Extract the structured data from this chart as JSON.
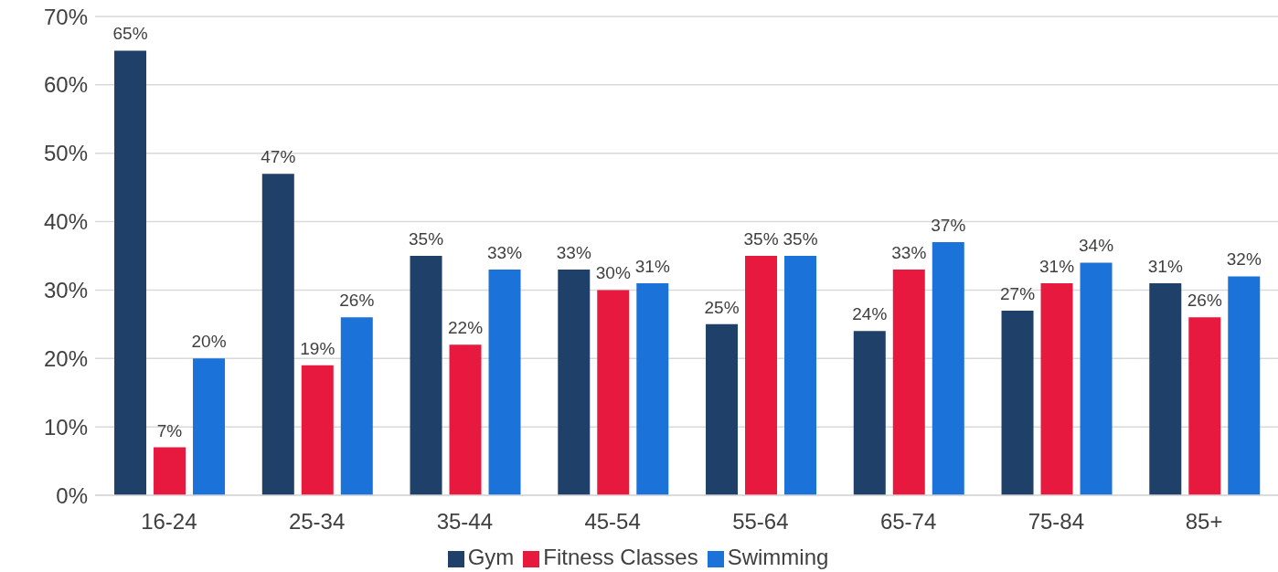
{
  "chart_data": {
    "type": "bar",
    "categories": [
      "16-24",
      "25-34",
      "35-44",
      "45-54",
      "55-64",
      "65-74",
      "75-84",
      "85+"
    ],
    "series": [
      {
        "name": "Gym",
        "color": "#1f4068",
        "values": [
          65,
          47,
          35,
          33,
          25,
          24,
          27,
          31
        ],
        "value_labels": [
          "65%",
          "47%",
          "35%",
          "33%",
          "25%",
          "24%",
          "27%",
          "31%"
        ]
      },
      {
        "name": "Fitness Classes",
        "color": "#e8193f",
        "values": [
          7,
          19,
          22,
          30,
          35,
          33,
          31,
          26
        ],
        "value_labels": [
          "7%",
          "19%",
          "22%",
          "30%",
          "35%",
          "33%",
          "31%",
          "26%"
        ]
      },
      {
        "name": "Swimming",
        "color": "#1b72d8",
        "values": [
          20,
          26,
          33,
          31,
          35,
          37,
          34,
          32
        ],
        "value_labels": [
          "20%",
          "26%",
          "33%",
          "31%",
          "35%",
          "37%",
          "34%",
          "32%"
        ]
      }
    ],
    "ylim": [
      0,
      70
    ],
    "yticks": [
      {
        "value": 0,
        "label": "0%"
      },
      {
        "value": 10,
        "label": "10%"
      },
      {
        "value": 20,
        "label": "20%"
      },
      {
        "value": 30,
        "label": "30%"
      },
      {
        "value": 40,
        "label": "40%"
      },
      {
        "value": 50,
        "label": "50%"
      },
      {
        "value": 60,
        "label": "60%"
      },
      {
        "value": 70,
        "label": "70%"
      }
    ],
    "grid": "y",
    "legend": "bottom"
  }
}
